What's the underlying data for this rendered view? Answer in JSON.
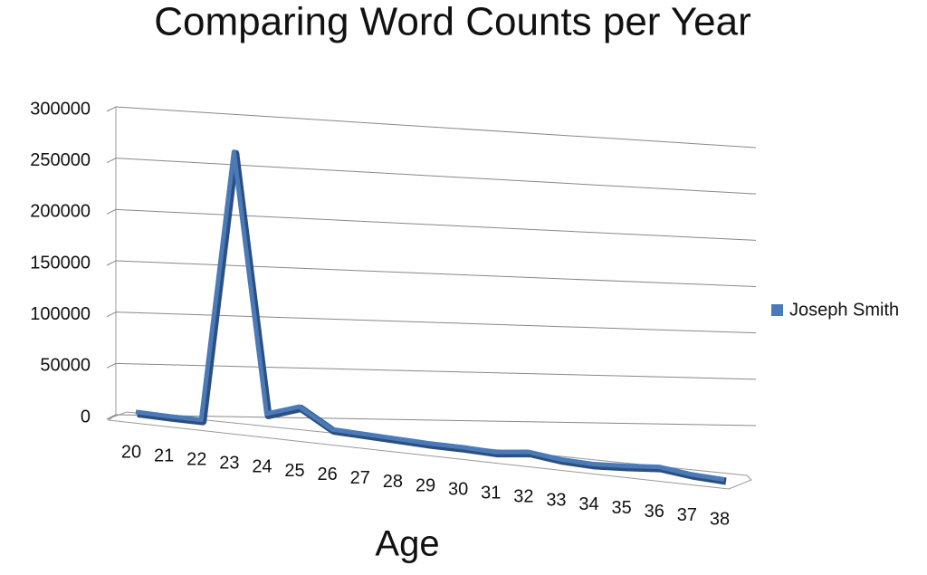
{
  "chart_data": {
    "type": "line",
    "title": "Comparing Word Counts per Year",
    "x_label": "Age",
    "categories": [
      "20",
      "21",
      "22",
      "23",
      "24",
      "25",
      "26",
      "27",
      "28",
      "29",
      "30",
      "31",
      "32",
      "33",
      "34",
      "35",
      "36",
      "37",
      "38"
    ],
    "series": [
      {
        "name": "Joseph Smith",
        "color": "#4a7ab8",
        "values": [
          1000,
          500,
          500,
          270000,
          14000,
          25000,
          6000,
          5000,
          4000,
          3000,
          3000,
          2000,
          6000,
          2000,
          1000,
          3000,
          6000,
          2000,
          500
        ]
      }
    ],
    "ylim": [
      0,
      300000
    ],
    "yticks": [
      0,
      50000,
      100000,
      150000,
      200000,
      250000,
      300000
    ],
    "grid": true,
    "legend": "right"
  }
}
